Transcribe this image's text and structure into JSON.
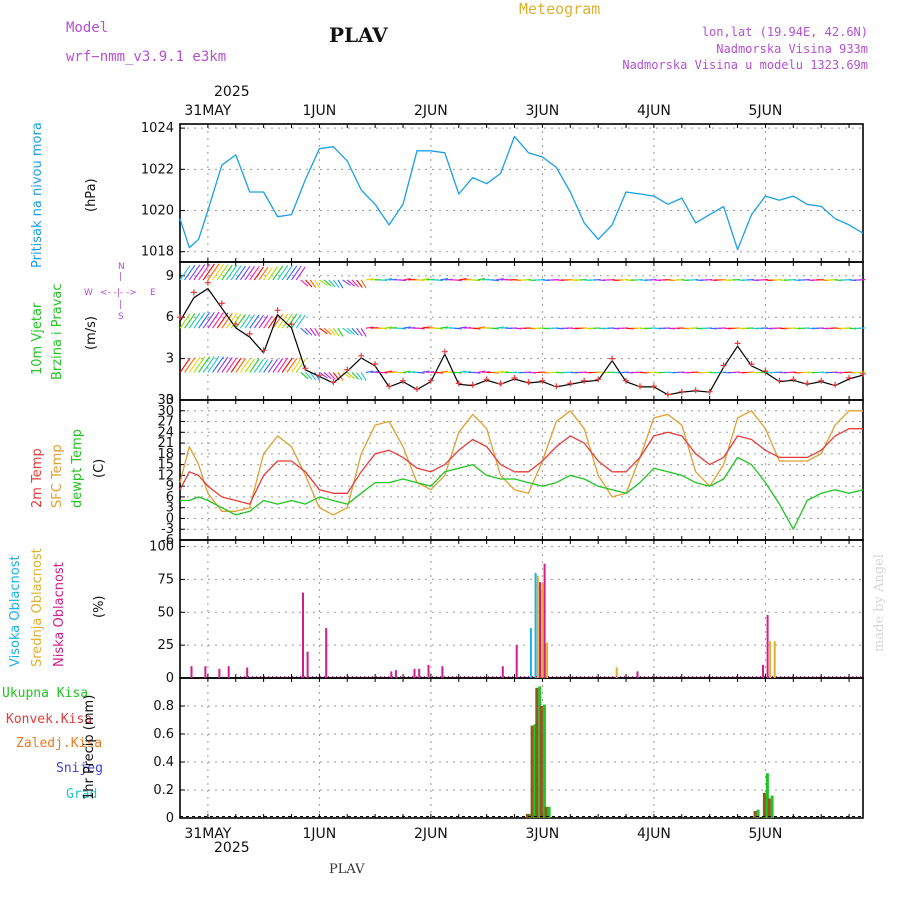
{
  "header": {
    "model_label": "Model",
    "model_name": "wrf−nmm_v3.9.1  e3km",
    "station": "PLAV",
    "meteogram": "Meteogram",
    "lonlat": "lon,lat (19.94E, 42.6N)",
    "elevation": "Nadmorska Visina 933m",
    "model_elevation": "Nadmorska Visina u modelu 1323.69m",
    "year": "2025",
    "footer_station": "PLAV",
    "watermark": "made by Angel"
  },
  "colors": {
    "pressure": "#1aa0e6",
    "temp2m": "#e83c3c",
    "sfc": "#e0a030",
    "dew": "#22c422",
    "purple": "#b450d2",
    "high_cloud": "#1ab0e8",
    "mid_cloud": "#e0b030",
    "low_cloud": "#d21e8c",
    "rain_total": "#22c422",
    "convective": "#e83c3c",
    "freezing": "#f07820",
    "snow": "#4040e0",
    "hail": "#20c8c8"
  },
  "legends": {
    "pressure": "Pritisak na nivou mora",
    "pressure_unit": "(hPa)",
    "wind1": "10m Vjetar",
    "wind2": "Brzina i Pravac",
    "wind_unit": "(m/s)",
    "compass_n": "N",
    "compass_w": "W",
    "compass_e": "E",
    "compass_s": "S",
    "temp2m": "2m Temp",
    "sfc": "SFC Temp",
    "dew": "dewpt Temp",
    "temp_unit": "(C)",
    "cloud_high": "Visoka Oblacnost",
    "cloud_mid": "Srednja Oblacnost",
    "cloud_low": "Niska  Oblacnost",
    "cloud_unit": "(%)",
    "precip_total": "Ukupna  Kisa",
    "precip_conv": "Konvek.Kisa",
    "precip_frz": "Zaledj.Kisa",
    "precip_snow": "Snijeg",
    "precip_hail": "Grad",
    "precip_unit": "1hr Precip (mm)"
  },
  "chart_data": {
    "type": "meteogram",
    "title": "PLAV",
    "x_day_labels": [
      "31MAY",
      "1JUN",
      "2JUN",
      "3JUN",
      "4JUN",
      "5JUN"
    ],
    "x_day_hours": [
      6,
      30,
      54,
      78,
      102,
      126
    ],
    "x_range_hours": [
      0,
      147
    ],
    "panels": [
      {
        "name": "pressure",
        "ylabel": "(hPa)",
        "ylim": [
          1017.5,
          1024.2
        ],
        "yticks": [
          1018,
          1020,
          1022,
          1024
        ],
        "series": [
          {
            "name": "Pritisak na nivou mora",
            "hours": [
              0,
              2,
              4,
              6,
              9,
              12,
              15,
              18,
              21,
              24,
              27,
              30,
              33,
              36,
              39,
              42,
              45,
              48,
              51,
              54,
              57,
              60,
              63,
              66,
              69,
              72,
              75,
              78,
              81,
              84,
              87,
              90,
              93,
              96,
              99,
              102,
              105,
              108,
              111,
              114,
              117,
              120,
              123,
              126,
              129,
              132,
              135,
              138,
              141,
              144,
              147
            ],
            "values": [
              1019.6,
              1018.2,
              1018.6,
              1020.0,
              1022.2,
              1022.7,
              1020.9,
              1020.9,
              1019.7,
              1019.8,
              1021.5,
              1023.0,
              1023.1,
              1022.4,
              1021.0,
              1020.3,
              1019.3,
              1020.3,
              1022.9,
              1022.9,
              1022.8,
              1020.8,
              1021.6,
              1021.3,
              1021.8,
              1023.6,
              1022.8,
              1022.6,
              1022.1,
              1020.9,
              1019.4,
              1018.6,
              1019.3,
              1020.9,
              1020.8,
              1020.7,
              1020.3,
              1020.6,
              1019.4,
              1019.8,
              1020.2,
              1018.1,
              1019.8,
              1020.7,
              1020.5,
              1020.7,
              1020.3,
              1020.2,
              1019.6,
              1019.3,
              1018.9
            ]
          }
        ]
      },
      {
        "name": "wind",
        "ylabel": "(m/s)",
        "ylim": [
          0,
          10
        ],
        "yticks": [
          0,
          3,
          6,
          9
        ],
        "series": [
          {
            "name": "10m wind speed",
            "hours": [
              0,
              3,
              6,
              9,
              12,
              15,
              18,
              21,
              24,
              27,
              30,
              33,
              36,
              39,
              42,
              45,
              48,
              51,
              54,
              57,
              60,
              63,
              66,
              69,
              72,
              75,
              78,
              81,
              84,
              87,
              90,
              93,
              96,
              99,
              102,
              105,
              108,
              111,
              114,
              117,
              120,
              123,
              126,
              129,
              132,
              135,
              138,
              141,
              144,
              147
            ],
            "values": [
              6.0,
              7.8,
              8.5,
              7.0,
              5.5,
              4.8,
              3.6,
              6.5,
              5.5,
              2.3,
              1.8,
              1.3,
              2.2,
              3.2,
              2.6,
              1.0,
              1.4,
              0.8,
              1.4,
              3.5,
              1.2,
              1.1,
              1.5,
              1.2,
              1.6,
              1.3,
              1.4,
              1.0,
              1.2,
              1.4,
              1.5,
              3.0,
              1.4,
              1.0,
              1.0,
              0.4,
              0.6,
              0.7,
              0.6,
              2.5,
              4.1,
              2.6,
              2.1,
              1.4,
              1.5,
              1.2,
              1.4,
              1.1,
              1.6,
              1.9
            ]
          }
        ]
      },
      {
        "name": "temperature",
        "ylabel": "(C)",
        "ylim": [
          -6,
          33
        ],
        "yticks": [
          -6,
          -3,
          0,
          3,
          6,
          9,
          12,
          15,
          18,
          21,
          24,
          27,
          30,
          33
        ],
        "series": [
          {
            "name": "2m Temp",
            "hours": [
              0,
              2,
              4,
              6,
              9,
              12,
              15,
              18,
              21,
              24,
              27,
              30,
              33,
              36,
              39,
              42,
              45,
              48,
              51,
              54,
              57,
              60,
              63,
              66,
              69,
              72,
              75,
              78,
              81,
              84,
              87,
              90,
              93,
              96,
              99,
              102,
              105,
              108,
              111,
              114,
              117,
              120,
              123,
              126,
              129,
              132,
              135,
              138,
              141,
              144,
              147
            ],
            "values": [
              8,
              13,
              12,
              9,
              6,
              5,
              4,
              12,
              16,
              16,
              13,
              8,
              7,
              7,
              13,
              18,
              19,
              17,
              14,
              13,
              15,
              19,
              22,
              20,
              15,
              13,
              13,
              16,
              20,
              23,
              21,
              16,
              13,
              13,
              17,
              23,
              24,
              23,
              18,
              15,
              17,
              23,
              22,
              19,
              17,
              17,
              17,
              19,
              23,
              25,
              25
            ]
          },
          {
            "name": "SFC Temp",
            "hours": [
              0,
              2,
              4,
              6,
              9,
              12,
              15,
              18,
              21,
              24,
              27,
              30,
              33,
              36,
              39,
              42,
              45,
              48,
              51,
              54,
              57,
              60,
              63,
              66,
              69,
              72,
              75,
              78,
              81,
              84,
              87,
              90,
              93,
              96,
              99,
              102,
              105,
              108,
              111,
              114,
              117,
              120,
              123,
              126,
              129,
              132,
              135,
              138,
              141,
              144,
              147
            ],
            "values": [
              10,
              20,
              15,
              7,
              2,
              2,
              3,
              18,
              23,
              20,
              12,
              3,
              1,
              3,
              18,
              26,
              27,
              20,
              10,
              8,
              12,
              24,
              29,
              25,
              12,
              8,
              7,
              16,
              27,
              30,
              25,
              12,
              6,
              7,
              17,
              28,
              29,
              26,
              13,
              9,
              15,
              28,
              30,
              25,
              16,
              16,
              16,
              18,
              26,
              30,
              30
            ]
          },
          {
            "name": "dewpt Temp",
            "hours": [
              0,
              2,
              4,
              6,
              9,
              12,
              15,
              18,
              21,
              24,
              27,
              30,
              33,
              36,
              39,
              42,
              45,
              48,
              51,
              54,
              57,
              60,
              63,
              66,
              69,
              72,
              75,
              78,
              81,
              84,
              87,
              90,
              93,
              96,
              99,
              102,
              105,
              108,
              111,
              114,
              117,
              120,
              123,
              126,
              129,
              132,
              135,
              138,
              141,
              144,
              147
            ],
            "values": [
              5,
              5,
              6,
              5,
              3,
              1,
              2,
              5,
              4,
              5,
              4,
              6,
              5,
              4,
              7,
              10,
              10,
              11,
              10,
              9,
              13,
              14,
              15,
              12,
              11,
              11,
              10,
              9,
              10,
              12,
              11,
              9,
              8,
              7,
              10,
              14,
              13,
              12,
              10,
              9,
              11,
              17,
              15,
              10,
              4,
              -3,
              5,
              7,
              8,
              7,
              8
            ]
          }
        ]
      },
      {
        "name": "cloud",
        "ylabel": "(%)",
        "ylim": [
          0,
          105
        ],
        "yticks": [
          0,
          25,
          50,
          75,
          100
        ],
        "series": [
          {
            "name": "Visoka Oblacnost",
            "hours": [
              76,
              77,
              78,
              79
            ],
            "values": [
              38,
              80,
              67,
              26
            ]
          },
          {
            "name": "Srednja Oblacnost",
            "hours": [
              77,
              78,
              79,
              94,
              127,
              128
            ],
            "values": [
              78,
              72,
              27,
              8,
              28,
              28
            ]
          },
          {
            "name": "Niska  Oblacnost",
            "hours": [
              2,
              5,
              8,
              10,
              14,
              26,
              27,
              31,
              45,
              46,
              50,
              51,
              53,
              56,
              69,
              72,
              77,
              78,
              98,
              125,
              126
            ],
            "values": [
              9,
              9,
              7,
              9,
              8,
              65,
              20,
              38,
              5,
              6,
              7,
              7,
              10,
              9,
              9,
              25,
              73,
              87,
              5,
              10,
              48
            ]
          }
        ]
      },
      {
        "name": "precip",
        "ylabel": "1hr Precip (mm)",
        "ylim": [
          0,
          1.0
        ],
        "yticks": [
          0,
          0.2,
          0.4,
          0.6,
          0.8
        ],
        "series": [
          {
            "name": "Ukupna  Kisa",
            "hours": [
              75,
              76,
              77,
              78,
              79,
              124,
              126,
              127
            ],
            "values": [
              0.03,
              0.67,
              0.94,
              0.81,
              0.08,
              0.06,
              0.32,
              0.16
            ]
          },
          {
            "name": "Konvek.Kisa",
            "hours": [
              75,
              76,
              77,
              78,
              79,
              124,
              126,
              127
            ],
            "values": [
              0.03,
              0.66,
              0.93,
              0.8,
              0.08,
              0.05,
              0.18,
              0.14
            ]
          }
        ]
      }
    ]
  }
}
